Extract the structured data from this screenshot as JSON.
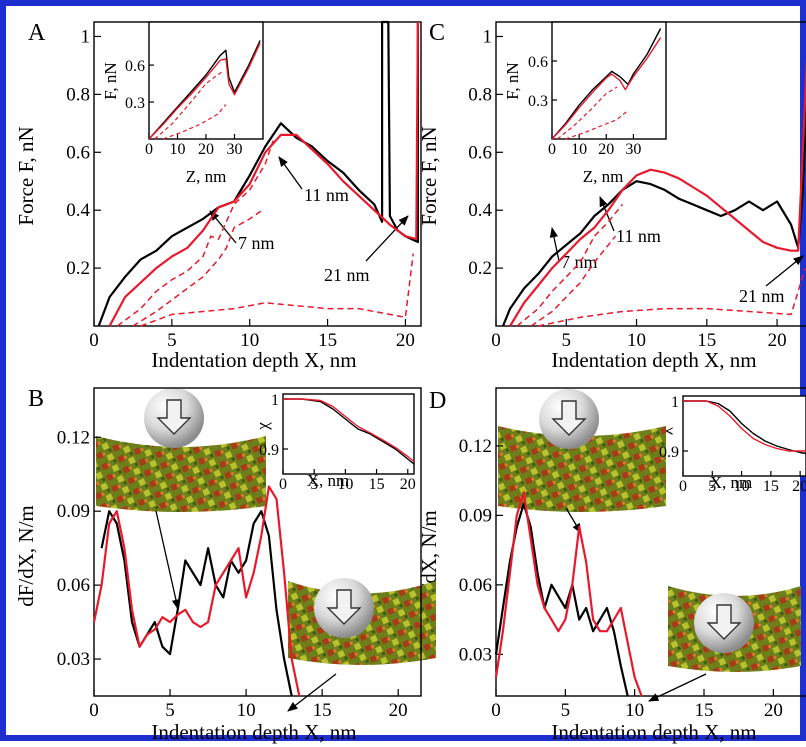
{
  "colors": {
    "border": "#1e2fd0",
    "black": "#000000",
    "red": "#e8192c"
  },
  "chart_data": [
    {
      "panel": "A",
      "type": "line",
      "xlabel": "Indentation depth X, nm",
      "ylabel": "Force F, nN",
      "xlim": [
        0,
        21
      ],
      "ylim": [
        0,
        1.05
      ],
      "xticks": [
        0,
        5,
        10,
        15,
        20
      ],
      "yticks": [
        0.2,
        0.4,
        0.6,
        0.8,
        1
      ],
      "series": [
        {
          "color": "#000000",
          "dash": false,
          "x": [
            0.3,
            1,
            2,
            3,
            4,
            5,
            6,
            7,
            8,
            9,
            10,
            11,
            11.5,
            12,
            13,
            14,
            15,
            16,
            17,
            18,
            18.5,
            18.5,
            18.9,
            19,
            19.5,
            20,
            20.8,
            20.8
          ],
          "y": [
            0,
            0.1,
            0.17,
            0.23,
            0.26,
            0.31,
            0.34,
            0.37,
            0.41,
            0.43,
            0.52,
            0.62,
            0.66,
            0.7,
            0.65,
            0.62,
            0.57,
            0.53,
            0.47,
            0.42,
            0.36,
            1.05,
            1.05,
            0.38,
            0.33,
            0.31,
            0.29,
            1.05
          ]
        },
        {
          "color": "#e8192c",
          "dash": false,
          "x": [
            1,
            2,
            3,
            4,
            5,
            6,
            7,
            8,
            9,
            10,
            11,
            12,
            13,
            14,
            15,
            16,
            17,
            18,
            19,
            20,
            20.7,
            20.8
          ],
          "y": [
            0,
            0.1,
            0.15,
            0.2,
            0.24,
            0.27,
            0.33,
            0.41,
            0.43,
            0.49,
            0.6,
            0.66,
            0.66,
            0.61,
            0.56,
            0.5,
            0.45,
            0.4,
            0.35,
            0.31,
            0.3,
            1.05
          ]
        },
        {
          "color": "#e8192c",
          "dash": true,
          "x": [
            1.5,
            3,
            4,
            5,
            6,
            7,
            7.5,
            8,
            9,
            10,
            11,
            11.5
          ],
          "y": [
            0,
            0.06,
            0.12,
            0.16,
            0.19,
            0.24,
            0.31,
            0.3,
            0.42,
            0.47,
            0.56,
            0.64
          ]
        },
        {
          "color": "#e8192c",
          "dash": true,
          "x": [
            2.5,
            4,
            5,
            6,
            7,
            8,
            8.5,
            9,
            10,
            10.8
          ],
          "y": [
            0,
            0.05,
            0.09,
            0.13,
            0.17,
            0.23,
            0.27,
            0.34,
            0.37,
            0.4
          ]
        },
        {
          "color": "#e8192c",
          "dash": true,
          "x": [
            3,
            5,
            7,
            9,
            11,
            13,
            15,
            17,
            19,
            20,
            20.5
          ],
          "y": [
            0,
            0.04,
            0.05,
            0.06,
            0.08,
            0.07,
            0.06,
            0.06,
            0.04,
            0.03,
            0.25
          ]
        }
      ],
      "annotations": [
        "11 nm",
        "7 nm",
        "21 nm"
      ],
      "inset": {
        "xlabel": "Z, nm",
        "ylabel": "F, nN",
        "xlim": [
          0,
          40
        ],
        "ylim": [
          0,
          0.95
        ],
        "xticks": [
          0,
          10,
          20,
          30
        ],
        "yticks": [
          0.3,
          0.6
        ],
        "series": [
          {
            "color": "#000000",
            "dash": false,
            "x": [
              0,
              5,
              10,
              15,
              20,
              25,
              27,
              28,
              30,
              35,
              39
            ],
            "y": [
              0,
              0.13,
              0.26,
              0.39,
              0.52,
              0.68,
              0.72,
              0.5,
              0.38,
              0.6,
              0.8
            ]
          },
          {
            "color": "#e8192c",
            "dash": false,
            "x": [
              0,
              5,
              10,
              15,
              20,
              25,
              27,
              28,
              30,
              35,
              39
            ],
            "y": [
              0,
              0.12,
              0.25,
              0.37,
              0.5,
              0.64,
              0.65,
              0.45,
              0.36,
              0.58,
              0.78
            ]
          },
          {
            "color": "#e8192c",
            "dash": true,
            "x": [
              2,
              8,
              14,
              20,
              24,
              26
            ],
            "y": [
              0,
              0.12,
              0.28,
              0.45,
              0.52,
              0.55
            ]
          },
          {
            "color": "#e8192c",
            "dash": true,
            "x": [
              5,
              12,
              18,
              24,
              27
            ],
            "y": [
              0,
              0.06,
              0.12,
              0.2,
              0.28
            ]
          }
        ]
      }
    },
    {
      "panel": "B",
      "type": "line",
      "xlabel": "Indentation depth X, nm",
      "ylabel": "dF/dX, N/m",
      "xlim": [
        0,
        21.5
      ],
      "ylim": [
        0.015,
        0.14
      ],
      "xticks": [
        0,
        5,
        10,
        15,
        20
      ],
      "yticks": [
        0.03,
        0.06,
        0.09,
        0.12
      ],
      "series": [
        {
          "color": "#000000",
          "dash": false,
          "x": [
            0.5,
            1,
            1.5,
            2,
            2.5,
            3,
            3.5,
            4,
            4.5,
            5,
            5.5,
            6,
            6.5,
            7,
            7.5,
            8,
            8.5,
            9,
            9.5,
            10,
            10.5,
            11,
            11.5,
            12,
            12.5,
            13
          ],
          "y": [
            0.075,
            0.09,
            0.085,
            0.07,
            0.045,
            0.035,
            0.04,
            0.045,
            0.035,
            0.032,
            0.05,
            0.07,
            0.065,
            0.06,
            0.075,
            0.06,
            0.055,
            0.07,
            0.065,
            0.07,
            0.085,
            0.09,
            0.08,
            0.05,
            0.03,
            0.012
          ]
        },
        {
          "color": "#e8192c",
          "dash": false,
          "x": [
            0,
            0.5,
            1,
            1.5,
            2,
            2.5,
            3,
            3.5,
            4,
            4.5,
            5,
            5.5,
            6,
            6.5,
            7,
            7.5,
            8,
            8.5,
            9,
            9.5,
            10,
            10.5,
            11,
            11.5,
            12,
            12.5,
            13,
            13.5
          ],
          "y": [
            0.045,
            0.06,
            0.085,
            0.09,
            0.075,
            0.05,
            0.035,
            0.04,
            0.042,
            0.047,
            0.045,
            0.048,
            0.05,
            0.045,
            0.043,
            0.045,
            0.06,
            0.065,
            0.07,
            0.075,
            0.055,
            0.065,
            0.08,
            0.1,
            0.095,
            0.065,
            0.03,
            0.012
          ]
        }
      ],
      "inset": {
        "xlabel": "X, nm",
        "ylabel": "χ",
        "xlim": [
          0,
          21
        ],
        "ylim": [
          0.85,
          1.01
        ],
        "xticks": [
          0,
          5,
          10,
          15,
          20
        ],
        "yticks": [
          0.9,
          1
        ],
        "series": [
          {
            "color": "#000000",
            "dash": false,
            "x": [
              0,
              3,
              6,
              8,
              10,
              12,
              14,
              16,
              18,
              20,
              21
            ],
            "y": [
              1,
              1,
              0.995,
              0.98,
              0.96,
              0.94,
              0.93,
              0.915,
              0.9,
              0.88,
              0.87
            ]
          },
          {
            "color": "#e8192c",
            "dash": false,
            "x": [
              0,
              3,
              6,
              8,
              10,
              12,
              14,
              16,
              18,
              20,
              21
            ],
            "y": [
              1,
              1,
              0.997,
              0.985,
              0.965,
              0.945,
              0.932,
              0.918,
              0.903,
              0.885,
              0.875
            ]
          }
        ]
      }
    },
    {
      "panel": "C",
      "type": "line",
      "xlabel": "Indentation depth X, nm",
      "ylabel": "Force F, nN",
      "xlim": [
        0,
        22.2
      ],
      "ylim": [
        0,
        1.05
      ],
      "xticks": [
        0,
        5,
        10,
        15,
        20
      ],
      "yticks": [
        0.2,
        0.4,
        0.6,
        0.8,
        1
      ],
      "series": [
        {
          "color": "#000000",
          "dash": false,
          "x": [
            0.5,
            1,
            2,
            3,
            4,
            5,
            6,
            7,
            8,
            9,
            10,
            11,
            12,
            13,
            14,
            15,
            16,
            17,
            18,
            19,
            20,
            21,
            21.5,
            21.8,
            22.2
          ],
          "y": [
            0,
            0.06,
            0.13,
            0.18,
            0.24,
            0.28,
            0.32,
            0.38,
            0.42,
            0.47,
            0.5,
            0.49,
            0.47,
            0.44,
            0.42,
            0.4,
            0.38,
            0.4,
            0.43,
            0.4,
            0.43,
            0.35,
            0.27,
            0.45,
            0.85
          ]
        },
        {
          "color": "#e8192c",
          "dash": false,
          "x": [
            1,
            2,
            3,
            4,
            5,
            6,
            7,
            8,
            9,
            10,
            11,
            12,
            13,
            14,
            15,
            16,
            17,
            18,
            19,
            20,
            21,
            21.5,
            22.2
          ],
          "y": [
            0,
            0.08,
            0.14,
            0.2,
            0.25,
            0.3,
            0.34,
            0.4,
            0.47,
            0.52,
            0.54,
            0.53,
            0.51,
            0.48,
            0.45,
            0.41,
            0.37,
            0.33,
            0.29,
            0.27,
            0.26,
            0.26,
            1.0
          ]
        },
        {
          "color": "#e8192c",
          "dash": true,
          "x": [
            1.5,
            3,
            4,
            5,
            6,
            7,
            8,
            9
          ],
          "y": [
            0,
            0.06,
            0.12,
            0.17,
            0.22,
            0.31,
            0.36,
            0.42
          ]
        },
        {
          "color": "#e8192c",
          "dash": true,
          "x": [
            2.5,
            4,
            5,
            6,
            7,
            8,
            8.5
          ],
          "y": [
            0,
            0.05,
            0.1,
            0.15,
            0.22,
            0.28,
            0.31
          ]
        },
        {
          "color": "#e8192c",
          "dash": true,
          "x": [
            3,
            6,
            9,
            12,
            15,
            18,
            21,
            22
          ],
          "y": [
            0,
            0.03,
            0.05,
            0.06,
            0.06,
            0.05,
            0.04,
            0.2
          ]
        }
      ],
      "annotations": [
        "11 nm",
        "7 nm",
        "21 nm"
      ],
      "inset": {
        "xlabel": "Z, nm",
        "ylabel": "F, nN",
        "xlim": [
          0,
          42
        ],
        "ylim": [
          0,
          0.9
        ],
        "xticks": [
          0,
          10,
          20,
          30
        ],
        "yticks": [
          0.3,
          0.6
        ],
        "series": [
          {
            "color": "#000000",
            "dash": false,
            "x": [
              0,
              5,
              10,
              15,
              20,
              22,
              25,
              28,
              30,
              35,
              40
            ],
            "y": [
              0,
              0.12,
              0.26,
              0.38,
              0.48,
              0.52,
              0.48,
              0.42,
              0.5,
              0.65,
              0.85
            ]
          },
          {
            "color": "#e8192c",
            "dash": false,
            "x": [
              0,
              5,
              10,
              15,
              20,
              22,
              25,
              27,
              30,
              35,
              40
            ],
            "y": [
              0,
              0.11,
              0.24,
              0.36,
              0.47,
              0.5,
              0.45,
              0.38,
              0.48,
              0.62,
              0.78
            ]
          },
          {
            "color": "#e8192c",
            "dash": true,
            "x": [
              2,
              8,
              14,
              20,
              24
            ],
            "y": [
              0,
              0.1,
              0.22,
              0.35,
              0.4
            ]
          },
          {
            "color": "#e8192c",
            "dash": true,
            "x": [
              5,
              12,
              18,
              24,
              28
            ],
            "y": [
              0,
              0.05,
              0.1,
              0.15,
              0.22
            ]
          }
        ]
      }
    },
    {
      "panel": "D",
      "type": "line",
      "xlabel": "Indentation depth X, nm",
      "ylabel": "dF/dX, N/m",
      "xlim": [
        0,
        22.5
      ],
      "ylim": [
        0.012,
        0.145
      ],
      "xticks": [
        0,
        5,
        10,
        15,
        20
      ],
      "yticks": [
        0.03,
        0.06,
        0.09,
        0.12
      ],
      "series": [
        {
          "color": "#000000",
          "dash": false,
          "x": [
            0,
            0.5,
            1,
            1.5,
            2,
            2.5,
            3,
            3.5,
            4,
            4.5,
            5,
            5.5,
            6,
            6.5,
            7,
            7.5,
            8,
            8.5,
            9,
            9.5
          ],
          "y": [
            0.03,
            0.05,
            0.07,
            0.085,
            0.095,
            0.085,
            0.065,
            0.05,
            0.06,
            0.055,
            0.05,
            0.06,
            0.045,
            0.05,
            0.04,
            0.045,
            0.05,
            0.04,
            0.025,
            0.012
          ]
        },
        {
          "color": "#e8192c",
          "dash": false,
          "x": [
            0,
            0.5,
            1,
            1.5,
            2,
            2.5,
            3,
            3.5,
            4,
            4.5,
            5,
            5.5,
            6,
            6.5,
            7,
            7.5,
            8,
            8.5,
            9,
            9.5,
            10,
            10.5
          ],
          "y": [
            0.02,
            0.04,
            0.065,
            0.09,
            0.1,
            0.08,
            0.06,
            0.05,
            0.045,
            0.04,
            0.045,
            0.06,
            0.085,
            0.07,
            0.045,
            0.04,
            0.04,
            0.045,
            0.05,
            0.035,
            0.02,
            0.012
          ]
        }
      ],
      "inset": {
        "xlabel": "X, nm",
        "ylabel": "χ",
        "xlim": [
          0,
          21
        ],
        "ylim": [
          0.85,
          1.01
        ],
        "xticks": [
          0,
          5,
          10,
          15,
          20
        ],
        "yticks": [
          0.9,
          1
        ],
        "series": [
          {
            "color": "#000000",
            "dash": false,
            "x": [
              0,
              4,
              6,
              8,
              10,
              12,
              14,
              16,
              18,
              20,
              21
            ],
            "y": [
              1,
              1,
              0.995,
              0.98,
              0.955,
              0.935,
              0.92,
              0.91,
              0.903,
              0.897,
              0.895
            ]
          },
          {
            "color": "#e8192c",
            "dash": false,
            "x": [
              0,
              4,
              6,
              8,
              10,
              12,
              14,
              16,
              18,
              20,
              21
            ],
            "y": [
              1,
              1,
              0.99,
              0.97,
              0.945,
              0.925,
              0.913,
              0.905,
              0.9,
              0.9,
              0.9
            ]
          }
        ]
      }
    }
  ]
}
